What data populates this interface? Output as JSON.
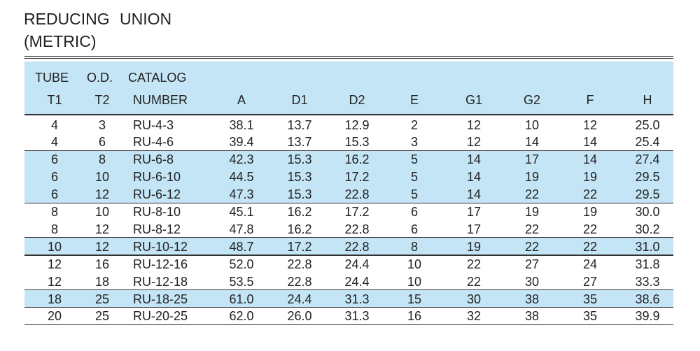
{
  "header": {
    "title": [
      "REDUCING UNION",
      "(METRIC)"
    ]
  },
  "table": {
    "header_top": [
      "TUBE",
      "O.D.",
      "CATALOG"
    ],
    "columns": [
      "T1",
      "T2",
      "NUMBER",
      "A",
      "D1",
      "D2",
      "E",
      "G1",
      "G2",
      "F",
      "H"
    ],
    "groups": [
      [
        [
          "4",
          "3",
          "RU-4-3",
          "38.1",
          "13.7",
          "12.9",
          "2",
          "12",
          "10",
          "12",
          "25.0"
        ],
        [
          "4",
          "6",
          "RU-4-6",
          "39.4",
          "13.7",
          "15.3",
          "3",
          "12",
          "14",
          "14",
          "25.4"
        ]
      ],
      [
        [
          "6",
          "8",
          "RU-6-8",
          "42.3",
          "15.3",
          "16.2",
          "5",
          "14",
          "17",
          "14",
          "27.4"
        ],
        [
          "6",
          "10",
          "RU-6-10",
          "44.5",
          "15.3",
          "17.2",
          "5",
          "14",
          "19",
          "19",
          "29.5"
        ],
        [
          "6",
          "12",
          "RU-6-12",
          "47.3",
          "15.3",
          "22.8",
          "5",
          "14",
          "22",
          "22",
          "29.5"
        ]
      ],
      [
        [
          "8",
          "10",
          "RU-8-10",
          "45.1",
          "16.2",
          "17.2",
          "6",
          "17",
          "19",
          "19",
          "30.0"
        ],
        [
          "8",
          "12",
          "RU-8-12",
          "47.8",
          "16.2",
          "22.8",
          "6",
          "17",
          "22",
          "22",
          "30.2"
        ]
      ],
      [
        [
          "10",
          "12",
          "RU-10-12",
          "48.7",
          "17.2",
          "22.8",
          "8",
          "19",
          "22",
          "22",
          "31.0"
        ]
      ],
      [
        [
          "12",
          "16",
          "RU-12-16",
          "52.0",
          "22.8",
          "24.4",
          "10",
          "22",
          "27",
          "24",
          "31.8"
        ],
        [
          "12",
          "18",
          "RU-12-18",
          "53.5",
          "22.8",
          "24.4",
          "10",
          "22",
          "30",
          "27",
          "33.3"
        ]
      ],
      [
        [
          "18",
          "25",
          "RU-18-25",
          "61.0",
          "24.4",
          "31.3",
          "15",
          "30",
          "38",
          "35",
          "38.6"
        ]
      ],
      [
        [
          "20",
          "25",
          "RU-20-25",
          "62.0",
          "26.0",
          "31.3",
          "16",
          "32",
          "38",
          "35",
          "39.9"
        ]
      ]
    ]
  }
}
